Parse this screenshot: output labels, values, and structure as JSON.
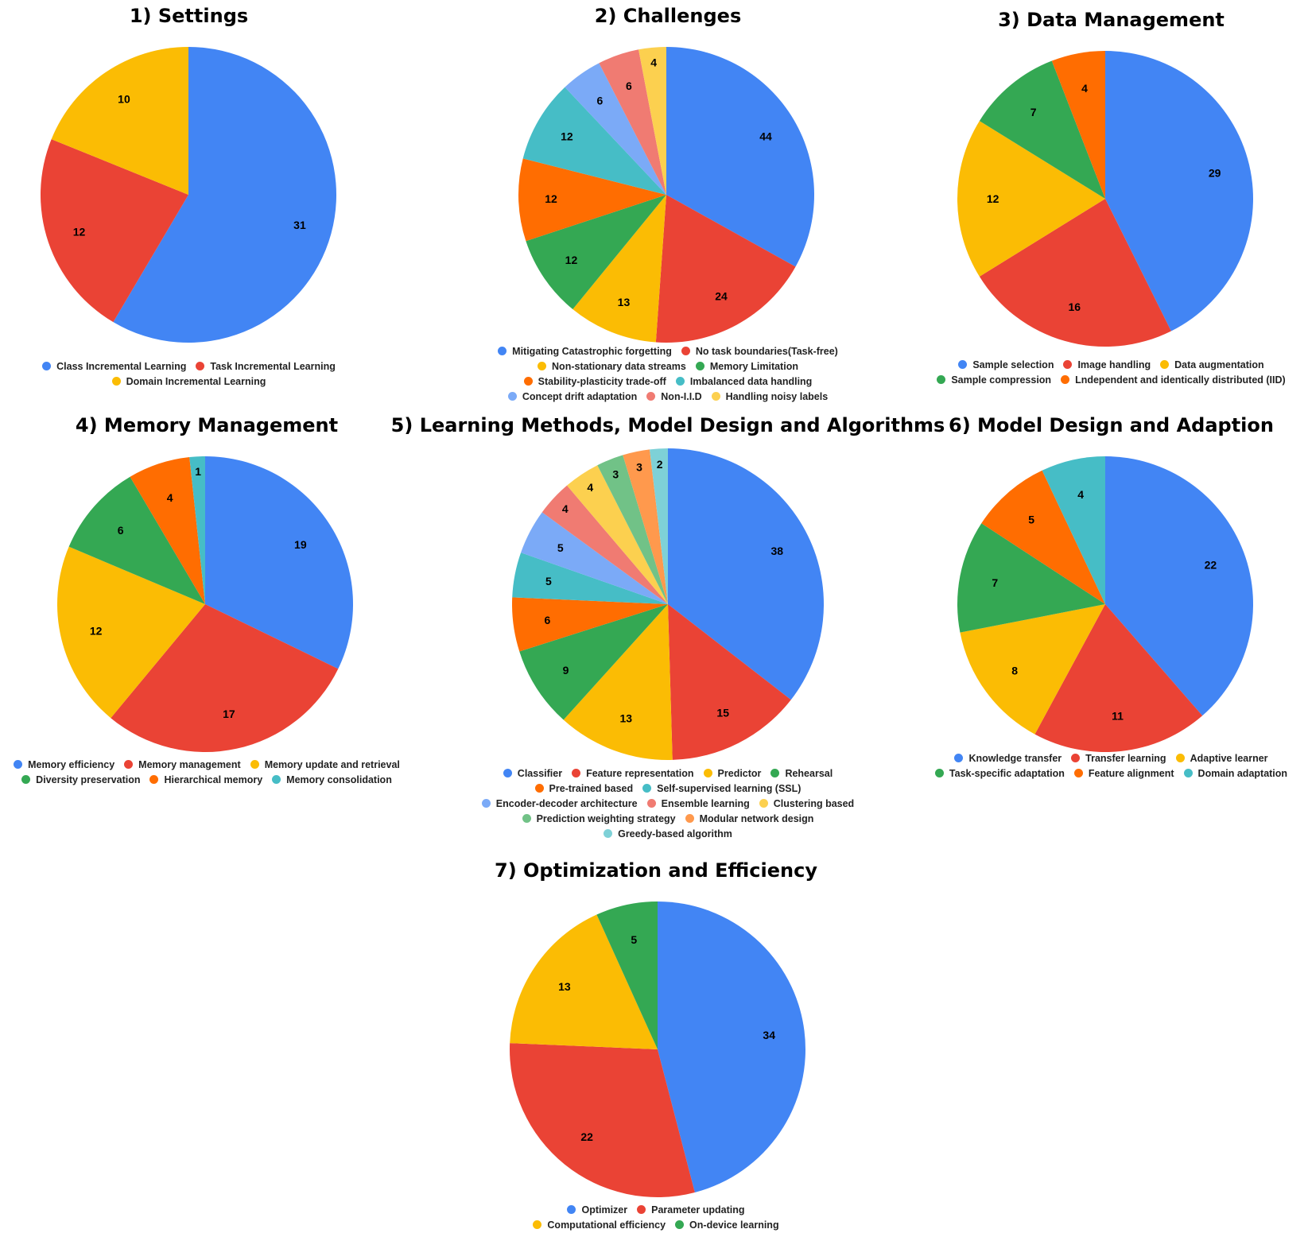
{
  "chart_data": [
    {
      "type": "pie",
      "title": "1) Settings",
      "categories": [
        "Class Incremental Learning",
        "Task Incremental Learning",
        "Domain Incremental Learning"
      ],
      "values": [
        31,
        12,
        10
      ],
      "colors": [
        "#4285F4",
        "#EA4335",
        "#FBBC04"
      ],
      "legend_rows": [
        [
          0,
          1
        ],
        [
          2
        ]
      ]
    },
    {
      "type": "pie",
      "title": "2) Challenges",
      "categories": [
        "Mitigating Catastrophic forgetting",
        "No task boundaries(Task-free)",
        "Non-stationary data streams",
        "Memory Limitation",
        "Stability-plasticity trade-off",
        "Imbalanced data handling",
        "Concept drift adaptation",
        "Non-I.I.D",
        "Handling noisy labels"
      ],
      "values": [
        44,
        24,
        13,
        12,
        12,
        12,
        6,
        6,
        4
      ],
      "colors": [
        "#4285F4",
        "#EA4335",
        "#FBBC04",
        "#34A853",
        "#FF6D01",
        "#46BDC6",
        "#7BAAF7",
        "#F07B72",
        "#FCD04F"
      ],
      "legend_rows": [
        [
          0,
          1
        ],
        [
          2,
          3
        ],
        [
          4,
          5
        ],
        [
          6,
          7,
          8
        ]
      ]
    },
    {
      "type": "pie",
      "title": "3) Data Management",
      "categories": [
        "Sample selection",
        "Image handling",
        "Data augmentation",
        "Sample compression",
        "Lndependent and identically distributed (IID)"
      ],
      "values": [
        29,
        16,
        12,
        7,
        4
      ],
      "colors": [
        "#4285F4",
        "#EA4335",
        "#FBBC04",
        "#34A853",
        "#FF6D01"
      ],
      "legend_rows": [
        [
          0,
          1,
          2
        ],
        [
          3,
          4
        ]
      ]
    },
    {
      "type": "pie",
      "title": "4) Memory Management",
      "categories": [
        "Memory efficiency",
        "Memory management",
        "Memory update and retrieval",
        "Diversity preservation",
        "Hierarchical memory",
        "Memory consolidation"
      ],
      "values": [
        19,
        17,
        12,
        6,
        4,
        1
      ],
      "colors": [
        "#4285F4",
        "#EA4335",
        "#FBBC04",
        "#34A853",
        "#FF6D01",
        "#46BDC6"
      ],
      "legend_rows": [
        [
          0,
          1,
          2
        ],
        [
          3,
          4,
          5
        ]
      ]
    },
    {
      "type": "pie",
      "title": "5) Learning Methods, Model Design and Algorithms",
      "categories": [
        "Classifier",
        "Feature representation",
        "Predictor",
        "Rehearsal",
        "Pre-trained based",
        "Self-supervised learning (SSL)",
        "Encoder-decoder architecture",
        "Ensemble learning",
        "Clustering based",
        "Prediction weighting strategy",
        "Modular network design",
        "Greedy-based algorithm"
      ],
      "values": [
        38,
        15,
        13,
        9,
        6,
        5,
        5,
        4,
        4,
        3,
        3,
        2
      ],
      "colors": [
        "#4285F4",
        "#EA4335",
        "#FBBC04",
        "#34A853",
        "#FF6D01",
        "#46BDC6",
        "#7BAAF7",
        "#F07B72",
        "#FCD04F",
        "#71C287",
        "#FF994D",
        "#7ED1D7"
      ],
      "legend_rows": [
        [
          0,
          1,
          2,
          3
        ],
        [
          4,
          5
        ],
        [
          6,
          7,
          8
        ],
        [
          9,
          10
        ],
        [
          11
        ]
      ]
    },
    {
      "type": "pie",
      "title": "6) Model Design and Adaption",
      "categories": [
        "Knowledge transfer",
        "Transfer learning",
        "Adaptive learner",
        "Task-specific adaptation",
        "Feature alignment",
        "Domain adaptation"
      ],
      "values": [
        22,
        11,
        8,
        7,
        5,
        4
      ],
      "colors": [
        "#4285F4",
        "#EA4335",
        "#FBBC04",
        "#34A853",
        "#FF6D01",
        "#46BDC6"
      ],
      "legend_rows": [
        [
          0,
          1,
          2
        ],
        [
          3,
          4,
          5
        ]
      ]
    },
    {
      "type": "pie",
      "title": "7) Optimization and Efficiency",
      "categories": [
        "Optimizer",
        "Parameter updating",
        "Computational efficiency",
        "On-device learning"
      ],
      "values": [
        34,
        22,
        13,
        5
      ],
      "colors": [
        "#4285F4",
        "#EA4335",
        "#FBBC04",
        "#34A853"
      ],
      "legend_rows": [
        [
          0,
          1
        ],
        [
          2,
          3
        ]
      ]
    }
  ]
}
